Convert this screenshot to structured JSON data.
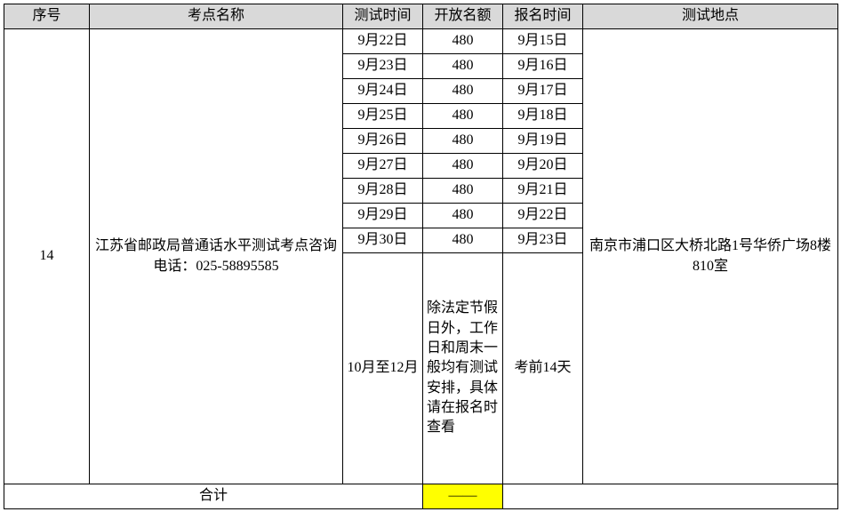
{
  "headers": {
    "seq": "序号",
    "name": "考点名称",
    "test_time": "测试时间",
    "quota": "开放名额",
    "reg_time": "报名时间",
    "location": "测试地点"
  },
  "seq_number": "14",
  "site_name": "江苏省邮政局普通话水平测试考点咨询电话：025-58895585",
  "location": "南京市浦口区大桥北路1号华侨广场8楼810室",
  "rows": [
    {
      "test_time": "9月22日",
      "quota": "480",
      "reg_time": "9月15日"
    },
    {
      "test_time": "9月23日",
      "quota": "480",
      "reg_time": "9月16日"
    },
    {
      "test_time": "9月24日",
      "quota": "480",
      "reg_time": "9月17日"
    },
    {
      "test_time": "9月25日",
      "quota": "480",
      "reg_time": "9月18日"
    },
    {
      "test_time": "9月26日",
      "quota": "480",
      "reg_time": "9月19日"
    },
    {
      "test_time": "9月27日",
      "quota": "480",
      "reg_time": "9月20日"
    },
    {
      "test_time": "9月28日",
      "quota": "480",
      "reg_time": "9月21日"
    },
    {
      "test_time": "9月29日",
      "quota": "480",
      "reg_time": "9月22日"
    },
    {
      "test_time": "9月30日",
      "quota": "480",
      "reg_time": "9月23日"
    }
  ],
  "last_row": {
    "test_time": "10月至12月",
    "quota": "除法定节假日外，工作日和周末一般均有测试安排，具体请在报名时查看",
    "reg_time": "考前14天"
  },
  "total": {
    "label": "合计",
    "dash": "——",
    "empty": ""
  },
  "colors": {
    "header_bg": "#d9d9d9",
    "highlight_bg": "#ffff00",
    "border": "#000000",
    "background": "#ffffff"
  },
  "typography": {
    "font_family": "SimSun",
    "font_size_pt": 12
  }
}
